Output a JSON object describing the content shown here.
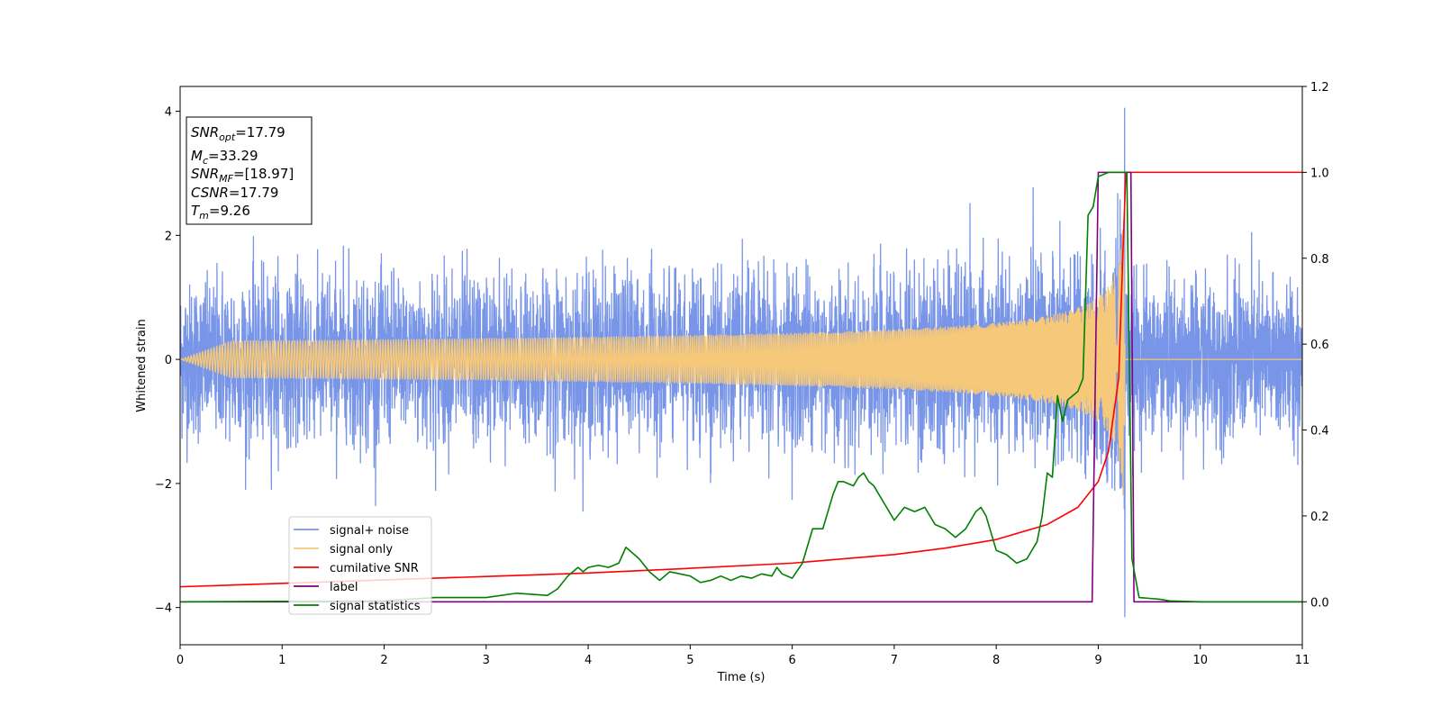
{
  "chart_data": {
    "type": "line",
    "title": "",
    "xlabel": "Time (s)",
    "ylabel": "Whitened strain",
    "y2label": "",
    "xlim": [
      0,
      11
    ],
    "ylim": [
      -4.6,
      4.4
    ],
    "y2lim": [
      -0.1,
      1.2
    ],
    "x_ticks": [
      0,
      1,
      2,
      3,
      4,
      5,
      6,
      7,
      8,
      9,
      10,
      11
    ],
    "x_tick_labels": [
      "0",
      "1",
      "2",
      "3",
      "4",
      "5",
      "6",
      "7",
      "8",
      "9",
      "10",
      "11"
    ],
    "y_ticks": [
      -4,
      -2,
      0,
      2,
      4
    ],
    "y_tick_labels": [
      "−4",
      "−2",
      "0",
      "2",
      "4"
    ],
    "y2_ticks": [
      0.0,
      0.2,
      0.4,
      0.6,
      0.8,
      1.0,
      1.2
    ],
    "y2_tick_labels": [
      "0.0",
      "0.2",
      "0.4",
      "0.6",
      "0.8",
      "1.0",
      "1.2"
    ],
    "grid": false,
    "legend_position": "lower-left",
    "info_box": {
      "snr_opt": {
        "base": "SNR",
        "sub": "opt",
        "value": "=17.79"
      },
      "mc": {
        "base": "M",
        "sub": "c",
        "value": "=33.29"
      },
      "snr_mf": {
        "base": "SNR",
        "sub": "MF",
        "value": "=[18.97]"
      },
      "csnr": {
        "base": "CSNR",
        "value": "=17.79"
      },
      "tm": {
        "base": "T",
        "sub": "m",
        "value": "=9.26"
      }
    },
    "series": [
      {
        "name": "signal+ noise",
        "axis": "left",
        "color": "#7895e8",
        "kind": "noise",
        "typical_amplitude": 1.3,
        "peak_max": 4.05,
        "peak_min": -4.15,
        "peak_time": 9.26
      },
      {
        "name": "signal only",
        "axis": "left",
        "color": "#f5c87a",
        "kind": "chirp",
        "merger_time": 9.26,
        "peak_amplitude": 3.0
      },
      {
        "name": "cumilative SNR",
        "axis": "right",
        "color": "#ff0000",
        "x": [
          0,
          1,
          2,
          3,
          4,
          5,
          6,
          7,
          7.5,
          8,
          8.5,
          8.8,
          9.0,
          9.1,
          9.2,
          9.24,
          9.27,
          9.3,
          10,
          11
        ],
        "y": [
          0.035,
          0.043,
          0.051,
          0.059,
          0.067,
          0.078,
          0.09,
          0.11,
          0.125,
          0.145,
          0.18,
          0.22,
          0.28,
          0.35,
          0.52,
          0.8,
          1.0,
          1.0,
          1.0,
          1.0
        ]
      },
      {
        "name": "label",
        "axis": "right",
        "color": "#800080",
        "x": [
          0,
          8.94,
          9.0,
          9.32,
          9.35,
          11
        ],
        "y": [
          0.0,
          0.0,
          1.0,
          1.0,
          0.0,
          0.0
        ]
      },
      {
        "name": "signal statistics",
        "axis": "right",
        "color": "#008000",
        "x": [
          0,
          1,
          2,
          2.5,
          3,
          3.3,
          3.6,
          3.7,
          3.8,
          3.9,
          3.95,
          4.0,
          4.1,
          4.2,
          4.3,
          4.37,
          4.5,
          4.6,
          4.7,
          4.8,
          4.9,
          5.0,
          5.1,
          5.2,
          5.3,
          5.4,
          5.5,
          5.6,
          5.7,
          5.8,
          5.85,
          5.9,
          6.0,
          6.1,
          6.2,
          6.25,
          6.3,
          6.4,
          6.45,
          6.5,
          6.6,
          6.65,
          6.7,
          6.75,
          6.8,
          6.9,
          7.0,
          7.1,
          7.2,
          7.3,
          7.4,
          7.5,
          7.6,
          7.7,
          7.75,
          7.8,
          7.85,
          7.9,
          8.0,
          8.1,
          8.2,
          8.3,
          8.4,
          8.45,
          8.5,
          8.55,
          8.6,
          8.65,
          8.7,
          8.8,
          8.85,
          8.9,
          8.95,
          9.0,
          9.1,
          9.2,
          9.25,
          9.28,
          9.33,
          9.4,
          9.5,
          9.6,
          9.7,
          10,
          11
        ],
        "y": [
          0.0,
          0.001,
          0.002,
          0.01,
          0.01,
          0.02,
          0.015,
          0.03,
          0.06,
          0.08,
          0.07,
          0.08,
          0.085,
          0.08,
          0.09,
          0.127,
          0.1,
          0.07,
          0.05,
          0.07,
          0.065,
          0.06,
          0.045,
          0.05,
          0.06,
          0.05,
          0.06,
          0.055,
          0.065,
          0.06,
          0.08,
          0.065,
          0.055,
          0.09,
          0.17,
          0.17,
          0.17,
          0.25,
          0.28,
          0.28,
          0.27,
          0.29,
          0.3,
          0.28,
          0.27,
          0.23,
          0.19,
          0.22,
          0.21,
          0.22,
          0.18,
          0.17,
          0.15,
          0.17,
          0.19,
          0.21,
          0.22,
          0.2,
          0.12,
          0.11,
          0.09,
          0.1,
          0.14,
          0.2,
          0.3,
          0.29,
          0.48,
          0.42,
          0.47,
          0.49,
          0.52,
          0.9,
          0.92,
          0.99,
          1.0,
          1.0,
          1.0,
          1.0,
          0.1,
          0.01,
          0.008,
          0.006,
          0.002,
          0.0,
          0.0
        ]
      }
    ]
  }
}
